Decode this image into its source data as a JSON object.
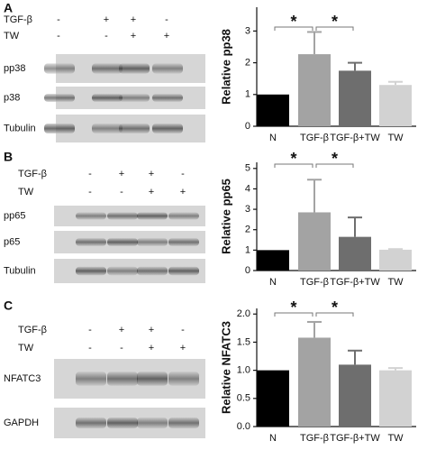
{
  "chart_data": [
    {
      "type": "bar",
      "y_label": "Relative  pp38",
      "categories": [
        "N",
        "TGF-β",
        "TGF-β+TW",
        "TW"
      ],
      "values": [
        1.0,
        2.27,
        1.75,
        1.3
      ],
      "errors": [
        0,
        0.7,
        0.25,
        0.1
      ],
      "colors": [
        "#000000",
        "#a3a3a3",
        "#6e6e6e",
        "#d2d2d2"
      ],
      "ylim": [
        0,
        3.75
      ],
      "yticks": [
        0,
        1,
        2,
        3
      ],
      "significance": [
        {
          "from": 0,
          "to": 1,
          "label": "*"
        },
        {
          "from": 1,
          "to": 2,
          "label": "*"
        }
      ]
    },
    {
      "type": "bar",
      "y_label": "Relative pp65",
      "categories": [
        "N",
        "TGF-β",
        "TGF-β+TW",
        "TW"
      ],
      "values": [
        1.0,
        2.85,
        1.65,
        1.02
      ],
      "errors": [
        0,
        1.6,
        0.95,
        0.03
      ],
      "colors": [
        "#000000",
        "#a3a3a3",
        "#6e6e6e",
        "#d2d2d2"
      ],
      "ylim": [
        0,
        5.3
      ],
      "yticks": [
        0,
        1,
        2,
        3,
        4,
        5
      ],
      "significance": [
        {
          "from": 0,
          "to": 1,
          "label": "*"
        },
        {
          "from": 1,
          "to": 2,
          "label": "*"
        }
      ]
    },
    {
      "type": "bar",
      "y_label": "Relative NFATC3",
      "categories": [
        "N",
        "TGF-β",
        "TGF-β+TW",
        "TW"
      ],
      "values": [
        1.0,
        1.58,
        1.1,
        1.0
      ],
      "errors": [
        0,
        0.28,
        0.25,
        0.04
      ],
      "colors": [
        "#000000",
        "#a3a3a3",
        "#6e6e6e",
        "#d2d2d2"
      ],
      "ylim": [
        0,
        2.1
      ],
      "yticks": [
        {
          "value": 0,
          "label": "0.0"
        },
        {
          "value": 0.5,
          "label": "0.5"
        },
        {
          "value": 1,
          "label": "1.0"
        },
        {
          "value": 1.5,
          "label": "1.5"
        },
        {
          "value": 2,
          "label": "2.0"
        }
      ],
      "significance": [
        {
          "from": 0,
          "to": 1,
          "label": "*"
        },
        {
          "from": 1,
          "to": 2,
          "label": "*"
        }
      ]
    }
  ],
  "blots": [
    {
      "letter": "A",
      "rows": [
        {
          "label": "TGF-β",
          "signs": [
            "-",
            "+",
            "+",
            "-"
          ]
        },
        {
          "label": "TW",
          "signs": [
            "-",
            "-",
            "+",
            "+"
          ]
        }
      ],
      "bands": [
        "pp38",
        "p38",
        "Tubulin"
      ]
    },
    {
      "letter": "B",
      "rows": [
        {
          "label": "TGF-β",
          "signs": [
            "-",
            "+",
            "+",
            "-"
          ]
        },
        {
          "label": "TW",
          "signs": [
            "-",
            "-",
            "+",
            "+"
          ]
        }
      ],
      "bands": [
        "pp65",
        "p65",
        "Tubulin"
      ]
    },
    {
      "letter": "C",
      "rows": [
        {
          "label": "TGF-β",
          "signs": [
            "-",
            "+",
            "+",
            "-"
          ]
        },
        {
          "label": "TW",
          "signs": [
            "-",
            "-",
            "+",
            "+"
          ]
        }
      ],
      "bands": [
        "NFATC3",
        "GAPDH"
      ]
    }
  ]
}
